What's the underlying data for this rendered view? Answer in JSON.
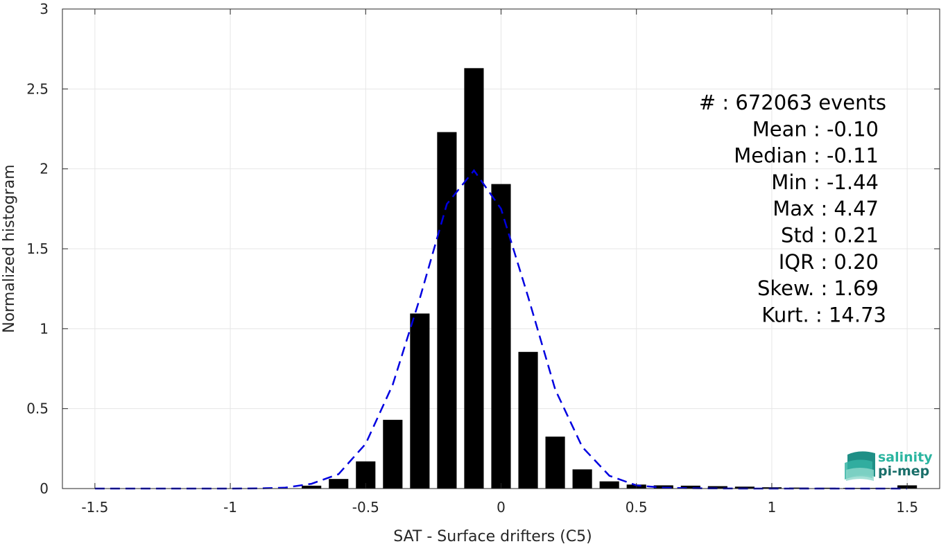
{
  "chart_data": {
    "type": "bar",
    "xlabel": "SAT - Surface drifters (C5)",
    "ylabel": "Normalized histogram",
    "xlim": [
      -1.62,
      1.62
    ],
    "ylim": [
      0,
      3
    ],
    "x_ticks": [
      -1.5,
      -1,
      -0.5,
      0,
      0.5,
      1,
      1.5
    ],
    "x_tick_labels": [
      "-1.5",
      "-1",
      "-0.5",
      "0",
      "0.5",
      "1",
      "1.5"
    ],
    "y_ticks": [
      0,
      0.5,
      1,
      1.5,
      2,
      2.5,
      3
    ],
    "y_tick_labels": [
      "0",
      "0.5",
      "1",
      "1.5",
      "2",
      "2.5",
      "3"
    ],
    "grid": true,
    "bar_color": "#000000",
    "bars": {
      "x": [
        -1.5,
        -1.4,
        -1.3,
        -1.2,
        -1.1,
        -1.0,
        -0.9,
        -0.8,
        -0.7,
        -0.6,
        -0.5,
        -0.4,
        -0.3,
        -0.2,
        -0.1,
        0.0,
        0.1,
        0.2,
        0.3,
        0.4,
        0.5,
        0.6,
        0.7,
        0.8,
        0.9,
        1.0,
        1.1,
        1.2,
        1.3,
        1.4,
        1.5
      ],
      "y": [
        0,
        0,
        0,
        0,
        0,
        0,
        0,
        0.002,
        0.018,
        0.06,
        0.17,
        0.43,
        1.095,
        2.23,
        2.63,
        1.905,
        0.855,
        0.325,
        0.12,
        0.045,
        0.025,
        0.02,
        0.018,
        0.015,
        0.012,
        0.008,
        0.006,
        0.005,
        0.004,
        0.004,
        0.02
      ]
    },
    "fit_curve": {
      "color": "#0000e0",
      "style": "dashed",
      "x": [
        -1.5,
        -1.4,
        -1.3,
        -1.2,
        -1.1,
        -1.0,
        -0.9,
        -0.8,
        -0.7,
        -0.6,
        -0.5,
        -0.4,
        -0.3,
        -0.2,
        -0.1,
        0.0,
        0.1,
        0.2,
        0.3,
        0.4,
        0.5,
        0.6,
        0.7,
        0.8,
        0.9,
        1.0,
        1.1,
        1.2,
        1.3,
        1.4,
        1.5
      ],
      "y": [
        0,
        0,
        0,
        0,
        0,
        0,
        0.001,
        0.005,
        0.03,
        0.09,
        0.28,
        0.65,
        1.19,
        1.78,
        1.99,
        1.75,
        1.2,
        0.62,
        0.26,
        0.08,
        0.02,
        0.005,
        0.002,
        0.001,
        0,
        0,
        0,
        0,
        0,
        0,
        0
      ]
    },
    "stats": [
      "#  : 672063 events",
      "Mean : -0.10",
      "Median : -0.11",
      "Min : -1.44",
      "Max : 4.47",
      "Std : 0.21",
      "IQR : 0.20",
      "Skew. : 1.69",
      "Kurt. : 14.73"
    ]
  },
  "logo": {
    "line1": "salinity",
    "line2": "pi-mep",
    "color1": "#2bb5a0",
    "color2": "#1a6f6a"
  }
}
